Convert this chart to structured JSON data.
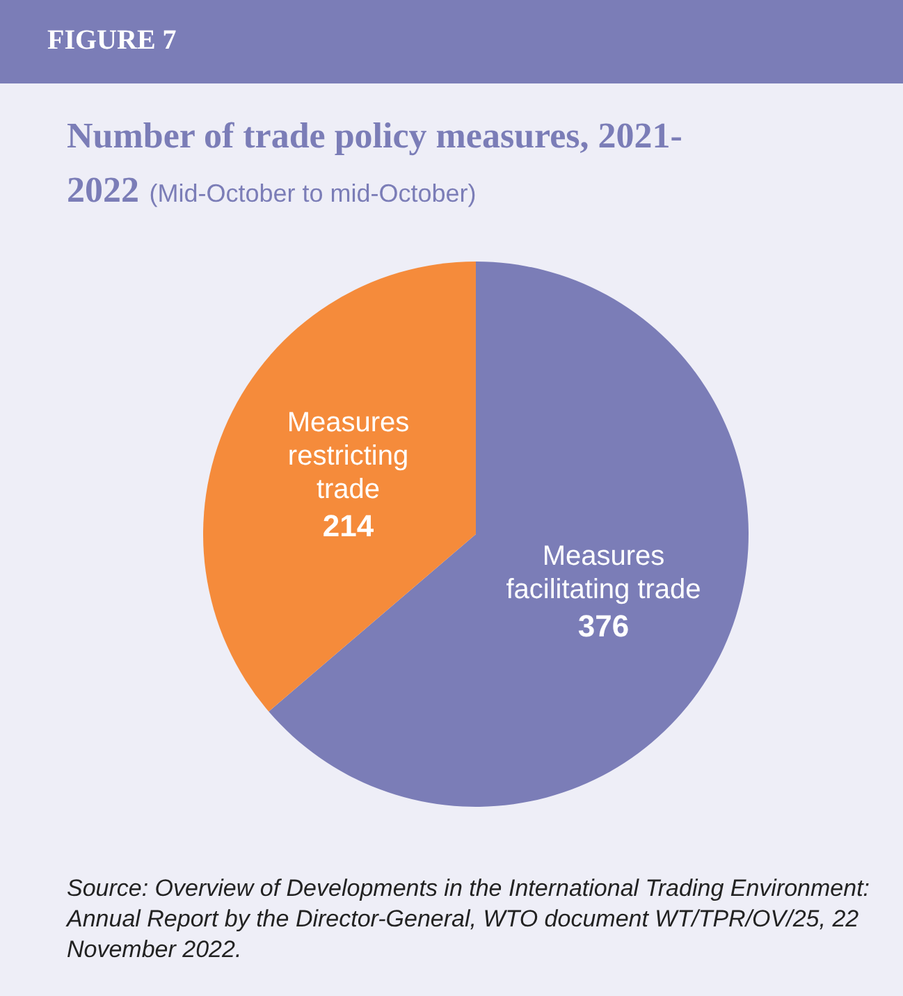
{
  "chart_data": {
    "type": "pie",
    "title": "Number of trade policy measures, 2021-2022",
    "subtitle": "(Mid-October to mid-October)",
    "categories": [
      "Measures facilitating trade",
      "Measures restricting trade"
    ],
    "values": [
      376,
      214
    ],
    "colors": [
      "#7b7db7",
      "#f58b3b"
    ],
    "data_labels": true,
    "legend": false,
    "annotations": [
      "FIGURE 7",
      "Source: Overview of Developments in the International Trading Environment: Annual Report by the Director-General, WTO document WT/TPR/OV/25, 22 November 2022."
    ]
  }
}
